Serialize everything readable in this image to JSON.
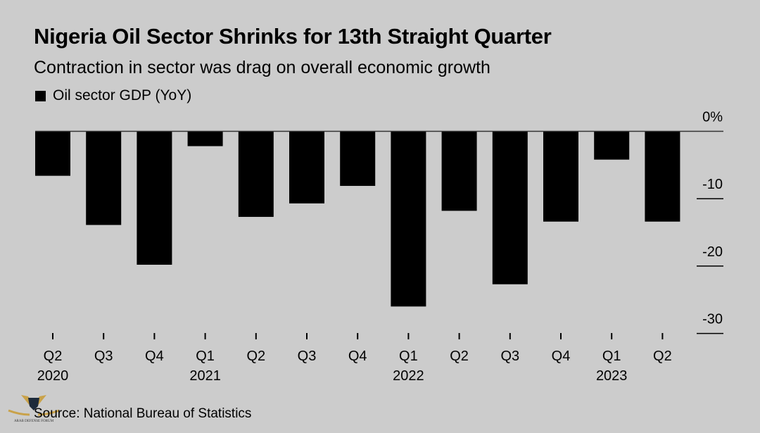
{
  "chart_data": {
    "type": "bar",
    "title": "Nigeria Oil Sector Shrinks for 13th Straight Quarter",
    "subtitle": "Contraction in sector was drag on overall economic growth",
    "legend": [
      {
        "name": "Oil sector GDP (YoY)",
        "color": "#000000"
      }
    ],
    "legend_placement": "top-left",
    "categories": [
      "Q2",
      "Q3",
      "Q4",
      "Q1",
      "Q2",
      "Q3",
      "Q4",
      "Q1",
      "Q2",
      "Q3",
      "Q4",
      "Q1",
      "Q2"
    ],
    "year_labels": [
      "2020",
      "",
      "",
      "2021",
      "",
      "",
      "",
      "2022",
      "",
      "",
      "",
      "2023",
      ""
    ],
    "series": [
      {
        "name": "Oil sector GDP (YoY)",
        "values": [
          -6.6,
          -13.9,
          -19.8,
          -2.2,
          -12.7,
          -10.7,
          -8.1,
          -26.0,
          -11.8,
          -22.7,
          -13.4,
          -4.2,
          -13.4
        ]
      }
    ],
    "y_ticks": [
      0,
      -10,
      -20,
      -30
    ],
    "y_tick_labels": [
      "0%",
      "-10",
      "-20",
      "-30"
    ],
    "ylim": [
      -30,
      0
    ],
    "y_axis_position": "right",
    "grid": false,
    "bar_color": "#000000",
    "background": "#cccccc",
    "source": "Source: National Bureau of Statistics"
  },
  "watermark": "ARAB DEFENSE FORUM"
}
